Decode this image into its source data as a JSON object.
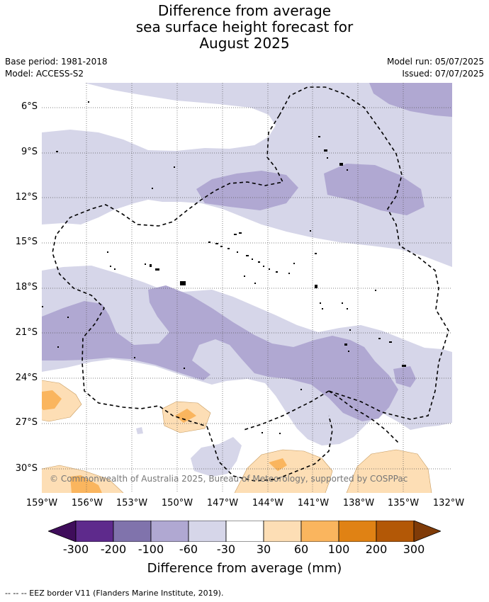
{
  "title": {
    "line1": "Difference from average",
    "line2": "sea surface height forecast for",
    "line3": "August 2025"
  },
  "meta": {
    "base_period": "Base period: 1981-2018",
    "model": "Model: ACCESS-S2",
    "model_run": "Model run: 05/07/2025",
    "issued": "Issued: 07/07/2025"
  },
  "map": {
    "lat_labels": [
      "6°S",
      "9°S",
      "12°S",
      "15°S",
      "18°S",
      "21°S",
      "24°S",
      "27°S",
      "30°S"
    ],
    "lon_labels": [
      "159°W",
      "156°W",
      "153°W",
      "150°W",
      "147°W",
      "144°W",
      "141°W",
      "138°W",
      "135°W",
      "132°W"
    ],
    "copyright": "© Commonwealth of Australia 2025, Bureau of Meteorology, supported by COSPPac",
    "colors": {
      "neg_60_100": "#b0a8d2",
      "neg_30_60": "#d6d6e9",
      "pos_30_60": "#fddeb5",
      "pos_60_100": "#fab55e",
      "ocean_neutral": "#ffffff",
      "eez_border": "#000000"
    }
  },
  "colorbar": {
    "title": "Difference from average (mm)",
    "ticks": [
      "-300",
      "-200",
      "-100",
      "-60",
      "-30",
      "30",
      "60",
      "100",
      "200",
      "300"
    ],
    "colors": [
      "#3f0d5b",
      "#5e2a8c",
      "#8073ac",
      "#b0a8d2",
      "#d6d6e9",
      "#ffffff",
      "#fddeb5",
      "#fab55e",
      "#e08214",
      "#b35806",
      "#7f3b08"
    ]
  },
  "footer": "--  --  -- EEZ border V11 (Flanders Marine Institute, 2019)."
}
